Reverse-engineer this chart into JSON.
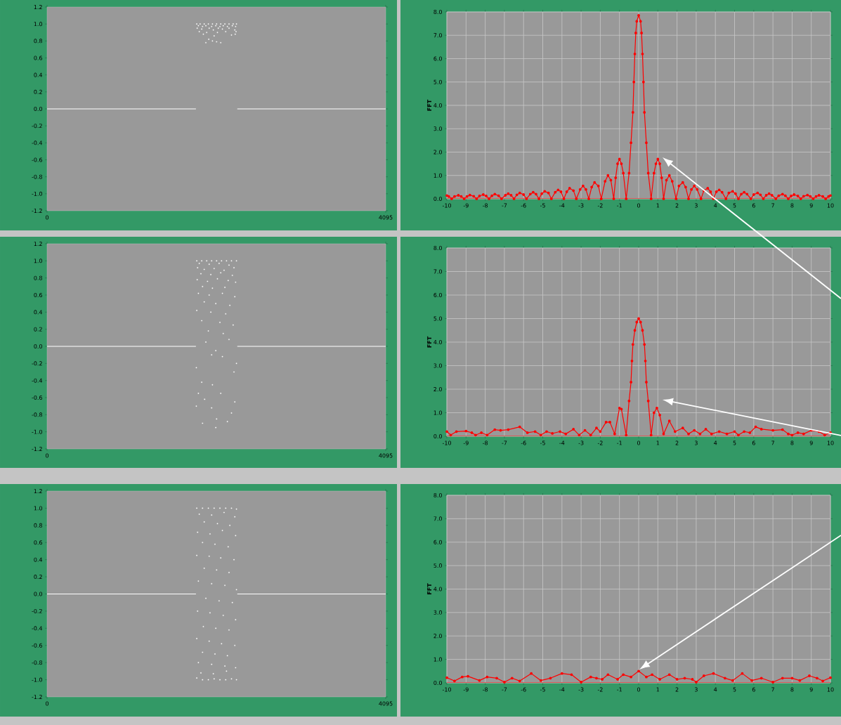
{
  "chart_data": [
    {
      "type": "scatter",
      "xlim": [
        0,
        4095
      ],
      "ylim": [
        -1.2,
        1.2
      ],
      "xticks": [
        0,
        4095
      ],
      "yticks": [
        {
          "value": -1.2,
          "label": "-1.2"
        },
        {
          "value": -1.0,
          "label": "-1.0"
        },
        {
          "value": -0.8,
          "label": "-0.8"
        },
        {
          "value": -0.6,
          "label": "-0.6"
        },
        {
          "value": -0.4,
          "label": "-0.4"
        },
        {
          "value": -0.2,
          "label": "-0.2"
        },
        {
          "value": 0,
          "label": "0.0"
        },
        {
          "value": 0.2,
          "label": "0.2"
        },
        {
          "value": 0.4,
          "label": "0.4"
        },
        {
          "value": 0.6,
          "label": "0.6"
        },
        {
          "value": 0.8,
          "label": "0.8"
        },
        {
          "value": 1.0,
          "label": "1.0"
        },
        {
          "value": 1.2,
          "label": "1.2"
        }
      ],
      "series": [
        {
          "type": "line",
          "color": "#ffffff",
          "x": [
            0,
            1800,
            2050,
            2300,
            4095
          ],
          "values": [
            0,
            0,
            null,
            0,
            0
          ]
        },
        {
          "type": "scatter",
          "marker": "square",
          "color": "#ffffff",
          "x": [
            1810,
            1850,
            1900,
            1950,
            2000,
            2050,
            2100,
            2150,
            2200,
            2250,
            2290,
            1830,
            1880,
            1920,
            1990,
            2040,
            2090,
            2130,
            2180,
            2240,
            2280,
            1815,
            1870,
            1960,
            2010,
            2070,
            2120,
            2200,
            2270,
            1840,
            1930,
            2060,
            2160,
            2285,
            1890,
            2020,
            2230,
            2275,
            1955,
            2000,
            2050,
            1920,
            2100
          ],
          "values": [
            1.0,
            1.0,
            1.0,
            1.0,
            1.0,
            1.0,
            1.0,
            1.0,
            1.0,
            1.0,
            1.0,
            0.98,
            0.97,
            0.98,
            0.97,
            0.98,
            0.97,
            0.98,
            0.97,
            0.98,
            0.97,
            0.95,
            0.94,
            0.95,
            0.93,
            0.95,
            0.94,
            0.95,
            0.93,
            0.91,
            0.9,
            0.9,
            0.91,
            0.91,
            0.88,
            0.86,
            0.87,
            0.88,
            0.82,
            0.8,
            0.79,
            0.78,
            0.78
          ]
        }
      ]
    },
    {
      "type": "line",
      "xlim": [
        -10,
        10
      ],
      "ylim": [
        0,
        8
      ],
      "xticks": [
        -10,
        -9,
        -8,
        -7,
        -6,
        -5,
        -4,
        -3,
        -2,
        -1,
        0,
        1,
        2,
        3,
        4,
        5,
        6,
        7,
        8,
        9,
        10
      ],
      "yticks": [
        {
          "value": 0,
          "label": "0.0"
        },
        {
          "value": 1,
          "label": "1.0"
        },
        {
          "value": 2,
          "label": "2.0"
        },
        {
          "value": 3,
          "label": "3.0"
        },
        {
          "value": 4,
          "label": "4.0"
        },
        {
          "value": 5,
          "label": "5.0"
        },
        {
          "value": 6,
          "label": "6.0"
        },
        {
          "value": 7,
          "label": "7.0"
        },
        {
          "value": 8,
          "label": "8.0"
        }
      ],
      "ylabel": "FFT",
      "grid": true,
      "series": [
        {
          "color": "#ff0000",
          "x": [
            -10,
            -9.9,
            -9.75,
            -9.6,
            -9.4,
            -9.25,
            -9.1,
            -8.95,
            -8.8,
            -8.6,
            -8.45,
            -8.3,
            -8.1,
            -7.95,
            -7.8,
            -7.65,
            -7.5,
            -7.3,
            -7.15,
            -6.95,
            -6.8,
            -6.65,
            -6.5,
            -6.35,
            -6.2,
            -6.0,
            -5.85,
            -5.65,
            -5.5,
            -5.35,
            -5.2,
            -5.05,
            -4.9,
            -4.7,
            -4.55,
            -4.35,
            -4.2,
            -4.05,
            -3.9,
            -3.75,
            -3.6,
            -3.4,
            -3.25,
            -3.05,
            -2.9,
            -2.75,
            -2.6,
            -2.45,
            -2.3,
            -2.1,
            -1.95,
            -1.75,
            -1.6,
            -1.45,
            -1.3,
            -1.2,
            -1.1,
            -1.0,
            -0.9,
            -0.8,
            -0.65,
            -0.5,
            -0.4,
            -0.3,
            -0.25,
            -0.2,
            -0.15,
            -0.1,
            0,
            0.1,
            0.15,
            0.2,
            0.25,
            0.3,
            0.4,
            0.5,
            0.65,
            0.8,
            0.9,
            1.0,
            1.1,
            1.2,
            1.3,
            1.45,
            1.6,
            1.75,
            1.95,
            2.1,
            2.3,
            2.45,
            2.6,
            2.75,
            2.9,
            3.05,
            3.25,
            3.4,
            3.6,
            3.75,
            3.9,
            4.05,
            4.2,
            4.35,
            4.55,
            4.7,
            4.9,
            5.05,
            5.2,
            5.35,
            5.5,
            5.65,
            5.85,
            6.0,
            6.2,
            6.35,
            6.5,
            6.65,
            6.8,
            6.95,
            7.15,
            7.3,
            7.5,
            7.65,
            7.8,
            7.95,
            8.1,
            8.3,
            8.45,
            8.6,
            8.8,
            8.95,
            9.1,
            9.25,
            9.4,
            9.6,
            9.75,
            9.9,
            10
          ],
          "values": [
            0.14,
            0.1,
            0,
            0.1,
            0.15,
            0.1,
            0,
            0.1,
            0.16,
            0.11,
            0,
            0.12,
            0.18,
            0.12,
            0,
            0.13,
            0.2,
            0.13,
            0,
            0.15,
            0.22,
            0.15,
            0,
            0.17,
            0.25,
            0.18,
            0,
            0.2,
            0.28,
            0.2,
            0,
            0.22,
            0.32,
            0.25,
            0,
            0.28,
            0.38,
            0.3,
            0,
            0.3,
            0.45,
            0.35,
            0,
            0.4,
            0.55,
            0.4,
            0,
            0.5,
            0.7,
            0.55,
            0,
            0.75,
            1.0,
            0.8,
            0,
            0.9,
            1.5,
            1.7,
            1.5,
            1.1,
            0,
            1.1,
            2.4,
            3.7,
            5.0,
            6.2,
            7.1,
            7.6,
            7.85,
            7.6,
            7.1,
            6.2,
            5.0,
            3.7,
            2.4,
            1.1,
            0,
            1.1,
            1.5,
            1.7,
            1.5,
            0.9,
            0,
            0.8,
            1.0,
            0.75,
            0,
            0.55,
            0.7,
            0.5,
            0,
            0.4,
            0.55,
            0.4,
            0,
            0.35,
            0.45,
            0.3,
            0,
            0.3,
            0.38,
            0.28,
            0,
            0.25,
            0.32,
            0.22,
            0,
            0.2,
            0.28,
            0.2,
            0,
            0.18,
            0.25,
            0.17,
            0,
            0.15,
            0.22,
            0.15,
            0,
            0.13,
            0.2,
            0.13,
            0,
            0.12,
            0.18,
            0.12,
            0,
            0.11,
            0.16,
            0.1,
            0,
            0.1,
            0.15,
            0.1,
            0,
            0.1,
            0.14
          ],
          "marker": "circle"
        },
        {
          "color": "#ff0000",
          "x": [
            -10,
            10
          ],
          "values": [
            0,
            0
          ]
        }
      ]
    },
    {
      "type": "scatter",
      "xlim": [
        0,
        4095
      ],
      "ylim": [
        -1.2,
        1.2
      ],
      "xticks": [
        0,
        4095
      ],
      "yticks": [
        {
          "value": -1.2,
          "label": "-1.2"
        },
        {
          "value": -1.0,
          "label": "-1.0"
        },
        {
          "value": -0.8,
          "label": "-0.8"
        },
        {
          "value": -0.6,
          "label": "-0.6"
        },
        {
          "value": -0.4,
          "label": "-0.4"
        },
        {
          "value": -0.2,
          "label": "-0.2"
        },
        {
          "value": 0,
          "label": "0.0"
        },
        {
          "value": 0.2,
          "label": "0.2"
        },
        {
          "value": 0.4,
          "label": "0.4"
        },
        {
          "value": 0.6,
          "label": "0.6"
        },
        {
          "value": 0.8,
          "label": "0.8"
        },
        {
          "value": 1.0,
          "label": "1.0"
        },
        {
          "value": 1.2,
          "label": "1.2"
        }
      ],
      "series": [
        {
          "type": "line",
          "color": "#ffffff",
          "x": [
            0,
            1800,
            2050,
            2300,
            4095
          ],
          "values": [
            0,
            0,
            null,
            0,
            0
          ]
        },
        {
          "type": "scatter",
          "marker": "square",
          "color": "#ffffff",
          "x": [
            1810,
            1870,
            1930,
            1990,
            2050,
            2110,
            2170,
            2230,
            2290,
            1840,
            1960,
            2080,
            2200,
            1820,
            1900,
            2020,
            2140,
            2260,
            1860,
            1980,
            2100,
            2240,
            1815,
            1940,
            2060,
            2190,
            2280,
            1880,
            2000,
            2150,
            1830,
            1960,
            2120,
            2270,
            1900,
            2040,
            2210,
            1810,
            1980,
            2160,
            1870,
            2090,
            2250,
            1950,
            2130,
            1920,
            2200,
            2040,
            1990,
            2120,
            2290,
            1805,
            2260,
            1870,
            2000,
            1830,
            2100,
            1905,
            2270,
            1805,
            1990,
            2230,
            2050,
            1880,
            2180,
            2040
          ],
          "values": [
            1.0,
            1.0,
            1.0,
            1.0,
            1.0,
            1.0,
            1.0,
            1.0,
            1.0,
            0.97,
            0.96,
            0.97,
            0.95,
            0.92,
            0.9,
            0.91,
            0.89,
            0.92,
            0.85,
            0.84,
            0.86,
            0.83,
            0.78,
            0.76,
            0.79,
            0.77,
            0.75,
            0.7,
            0.68,
            0.69,
            0.62,
            0.6,
            0.62,
            0.58,
            0.52,
            0.5,
            0.48,
            0.42,
            0.4,
            0.38,
            0.3,
            0.28,
            0.25,
            0.18,
            0.15,
            0.05,
            0.08,
            -0.05,
            -0.1,
            -0.12,
            -0.2,
            -0.25,
            -0.3,
            -0.42,
            -0.45,
            -0.55,
            -0.55,
            -0.62,
            -0.65,
            -0.7,
            -0.72,
            -0.78,
            -0.85,
            -0.9,
            -0.88,
            -0.95
          ]
        }
      ]
    },
    {
      "type": "line",
      "xlim": [
        -10,
        10
      ],
      "ylim": [
        0,
        8
      ],
      "xticks": [
        -10,
        -9,
        -8,
        -7,
        -6,
        -5,
        -4,
        -3,
        -2,
        -1,
        0,
        1,
        2,
        3,
        4,
        5,
        6,
        7,
        8,
        9,
        10
      ],
      "yticks": [
        {
          "value": 0,
          "label": "0.0"
        },
        {
          "value": 1,
          "label": "1.0"
        },
        {
          "value": 2,
          "label": "2.0"
        },
        {
          "value": 3,
          "label": "3.0"
        },
        {
          "value": 4,
          "label": "4.0"
        },
        {
          "value": 5,
          "label": "5.0"
        },
        {
          "value": 6,
          "label": "6.0"
        },
        {
          "value": 7,
          "label": "7.0"
        },
        {
          "value": 8,
          "label": "8.0"
        }
      ],
      "ylabel": "FFT",
      "grid": true,
      "series": [
        {
          "color": "#ff0000",
          "x": [
            -10,
            -9.8,
            -9.5,
            -9,
            -8.7,
            -8.5,
            -8.2,
            -7.9,
            -7.5,
            -7.2,
            -6.8,
            -6.2,
            -5.8,
            -5.4,
            -5.1,
            -4.8,
            -4.5,
            -4.1,
            -3.8,
            -3.4,
            -3.1,
            -2.8,
            -2.5,
            -2.2,
            -2.0,
            -1.7,
            -1.5,
            -1.25,
            -1.0,
            -0.9,
            -0.65,
            -0.5,
            -0.4,
            -0.35,
            -0.3,
            -0.2,
            -0.1,
            0,
            0.1,
            0.2,
            0.3,
            0.35,
            0.4,
            0.5,
            0.65,
            0.8,
            0.95,
            1.1,
            1.3,
            1.6,
            1.9,
            2.3,
            2.6,
            2.9,
            3.2,
            3.5,
            3.8,
            4.2,
            4.6,
            5.0,
            5.2,
            5.5,
            5.8,
            6.1,
            6.4,
            7.0,
            7.5,
            7.8,
            8.0,
            8.3,
            8.6,
            9.0,
            9.4,
            9.7,
            10
          ],
          "values": [
            0.2,
            0.05,
            0.2,
            0.22,
            0.15,
            0.05,
            0.15,
            0.05,
            0.28,
            0.25,
            0.28,
            0.4,
            0.15,
            0.2,
            0.05,
            0.2,
            0.12,
            0.2,
            0.1,
            0.3,
            0.05,
            0.25,
            0.05,
            0.35,
            0.2,
            0.6,
            0.6,
            0.1,
            1.2,
            1.15,
            0.05,
            1.5,
            2.3,
            3.2,
            3.9,
            4.5,
            4.85,
            5.0,
            4.85,
            4.5,
            3.9,
            3.2,
            2.3,
            1.5,
            0.05,
            1.0,
            1.2,
            0.9,
            0.1,
            0.65,
            0.2,
            0.35,
            0.1,
            0.25,
            0.1,
            0.3,
            0.1,
            0.2,
            0.1,
            0.2,
            0.05,
            0.2,
            0.15,
            0.4,
            0.3,
            0.25,
            0.28,
            0.1,
            0.05,
            0.15,
            0.1,
            0.25,
            0.2,
            0.05,
            0.15
          ],
          "marker": "circle"
        },
        {
          "color": "#ff0000",
          "x": [
            -10,
            10
          ],
          "values": [
            0,
            0
          ]
        }
      ]
    },
    {
      "type": "scatter",
      "xlim": [
        0,
        4095
      ],
      "ylim": [
        -1.2,
        1.2
      ],
      "xticks": [
        0,
        4095
      ],
      "yticks": [
        {
          "value": -1.2,
          "label": "-1.2"
        },
        {
          "value": -1.0,
          "label": "-1.0"
        },
        {
          "value": -0.8,
          "label": "-0.8"
        },
        {
          "value": -0.6,
          "label": "-0.6"
        },
        {
          "value": -0.4,
          "label": "-0.4"
        },
        {
          "value": -0.2,
          "label": "-0.2"
        },
        {
          "value": 0,
          "label": "0.0"
        },
        {
          "value": 0.2,
          "label": "0.2"
        },
        {
          "value": 0.4,
          "label": "0.4"
        },
        {
          "value": 0.6,
          "label": "0.6"
        },
        {
          "value": 0.8,
          "label": "0.8"
        },
        {
          "value": 1.0,
          "label": "1.0"
        },
        {
          "value": 1.2,
          "label": "1.2"
        }
      ],
      "series": [
        {
          "type": "line",
          "color": "#ffffff",
          "x": [
            0,
            1800,
            2050,
            2300,
            4095
          ],
          "values": [
            0,
            0,
            null,
            0,
            0
          ]
        },
        {
          "type": "scatter",
          "marker": "square",
          "color": "#ffffff",
          "x": [
            1810,
            1880,
            1950,
            2020,
            2090,
            2160,
            2230,
            2290,
            1840,
            1990,
            2140,
            2270,
            1900,
            2060,
            2210,
            1820,
            1970,
            2120,
            2280,
            1880,
            2030,
            2190,
            1810,
            1960,
            2100,
            2260,
            1900,
            2050,
            2200,
            1830,
            1990,
            2150,
            2290,
            1920,
            2080,
            2240,
            1820,
            1970,
            2130,
            2280,
            1890,
            2040,
            2200,
            1810,
            1960,
            2110,
            2270,
            1880,
            2030,
            2180,
            1830,
            1990,
            2150,
            2280,
            1860,
            2010,
            2170,
            1810,
            1880,
            1950,
            2020,
            2090,
            2160,
            2230,
            2290
          ],
          "values": [
            1.0,
            1.0,
            1.0,
            1.0,
            1.0,
            1.0,
            1.0,
            0.99,
            0.93,
            0.92,
            0.95,
            0.9,
            0.84,
            0.82,
            0.8,
            0.72,
            0.7,
            0.74,
            0.68,
            0.6,
            0.58,
            0.55,
            0.45,
            0.44,
            0.42,
            0.4,
            0.3,
            0.28,
            0.25,
            0.15,
            0.12,
            0.1,
            0.05,
            -0.05,
            -0.08,
            -0.1,
            -0.2,
            -0.22,
            -0.25,
            -0.3,
            -0.38,
            -0.4,
            -0.42,
            -0.52,
            -0.55,
            -0.58,
            -0.6,
            -0.68,
            -0.7,
            -0.72,
            -0.8,
            -0.82,
            -0.84,
            -0.86,
            -0.92,
            -0.93,
            -0.9,
            -0.98,
            -1.0,
            -1.0,
            -0.99,
            -1.0,
            -1.0,
            -0.99,
            -1.0
          ]
        }
      ]
    },
    {
      "type": "line",
      "xlim": [
        -10,
        10
      ],
      "ylim": [
        0,
        8
      ],
      "xticks": [
        -10,
        -9,
        -8,
        -7,
        -6,
        -5,
        -4,
        -3,
        -2,
        -1,
        0,
        1,
        2,
        3,
        4,
        5,
        6,
        7,
        8,
        9,
        10
      ],
      "yticks": [
        {
          "value": 0,
          "label": "0.0"
        },
        {
          "value": 1,
          "label": "1.0"
        },
        {
          "value": 2,
          "label": "2.0"
        },
        {
          "value": 3,
          "label": "3.0"
        },
        {
          "value": 4,
          "label": "4.0"
        },
        {
          "value": 5,
          "label": "5.0"
        },
        {
          "value": 6,
          "label": "6.0"
        },
        {
          "value": 7,
          "label": "7.0"
        },
        {
          "value": 8,
          "label": "8.0"
        }
      ],
      "ylabel": "FFT",
      "grid": true,
      "series": [
        {
          "color": "#ff0000",
          "x": [
            -10,
            -9.6,
            -9.2,
            -8.9,
            -8.3,
            -7.9,
            -7.4,
            -7.0,
            -6.6,
            -6.2,
            -5.6,
            -5.1,
            -4.6,
            -4.0,
            -3.5,
            -3.0,
            -2.5,
            -2.2,
            -1.9,
            -1.6,
            -1.1,
            -0.8,
            -0.4,
            0,
            0.4,
            0.7,
            1.1,
            1.6,
            2.0,
            2.4,
            2.8,
            3.0,
            3.4,
            3.9,
            4.5,
            4.9,
            5.4,
            5.9,
            6.4,
            7.0,
            7.5,
            8.0,
            8.4,
            8.9,
            9.3,
            9.6,
            10
          ],
          "values": [
            0.22,
            0.08,
            0.25,
            0.28,
            0.1,
            0.25,
            0.2,
            0.03,
            0.2,
            0.08,
            0.4,
            0.1,
            0.2,
            0.4,
            0.35,
            0.03,
            0.25,
            0.2,
            0.15,
            0.35,
            0.15,
            0.35,
            0.25,
            0.5,
            0.25,
            0.35,
            0.15,
            0.35,
            0.15,
            0.2,
            0.15,
            0.03,
            0.3,
            0.4,
            0.2,
            0.1,
            0.4,
            0.1,
            0.2,
            0.03,
            0.2,
            0.2,
            0.1,
            0.3,
            0.2,
            0.08,
            0.22
          ],
          "marker": "circle"
        },
        {
          "color": "#ff0000",
          "x": [
            -10,
            10
          ],
          "values": [
            0,
            0
          ]
        }
      ]
    }
  ]
}
